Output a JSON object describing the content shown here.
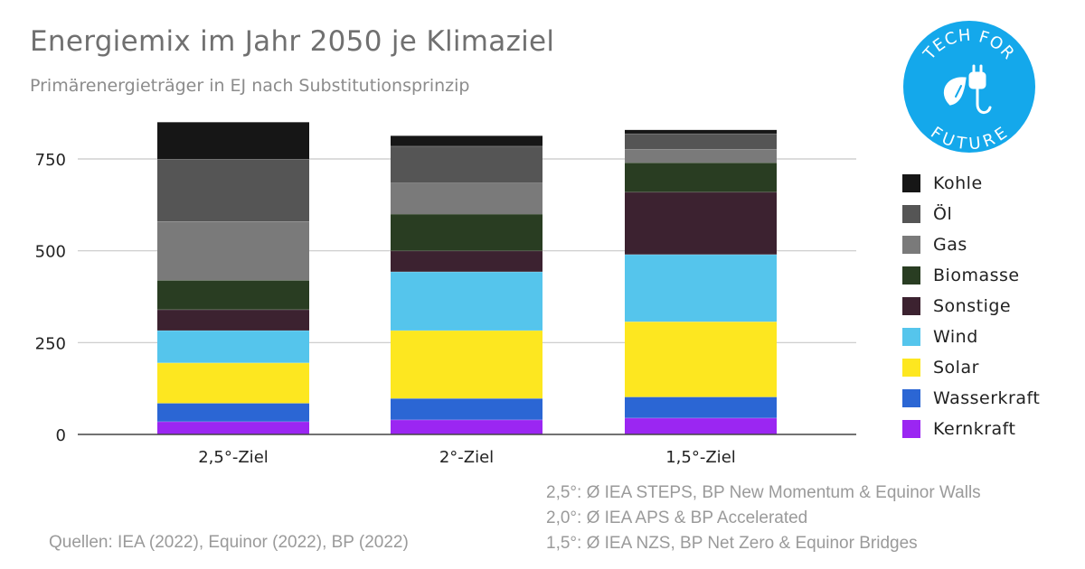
{
  "header": {
    "title": "Energiemix im Jahr 2050 je Klimaziel",
    "subtitle": "Primärenergieträger in EJ nach Substitutionsprinzip"
  },
  "logo": {
    "top_text": "TECH FOR",
    "bottom_text": "FUTURE",
    "icon": "leaf-plug-icon",
    "color": "#14a8eb"
  },
  "chart_data": {
    "type": "bar",
    "stacked": true,
    "categories": [
      "2,5°-Ziel",
      "2°-Ziel",
      "1,5°-Ziel"
    ],
    "ylim": [
      0,
      850
    ],
    "yticks": [
      0,
      250,
      500,
      750
    ],
    "grid": true,
    "legend_position": "right",
    "series": [
      {
        "name": "Kernkraft",
        "color": "#9b26f2",
        "values": [
          35,
          40,
          45
        ]
      },
      {
        "name": "Wasserkraft",
        "color": "#2b66d4",
        "values": [
          50,
          58,
          57
        ]
      },
      {
        "name": "Solar",
        "color": "#fde720",
        "values": [
          110,
          185,
          205
        ]
      },
      {
        "name": "Wind",
        "color": "#55c5ec",
        "values": [
          88,
          160,
          183
        ]
      },
      {
        "name": "Sonstige",
        "color": "#3c2230",
        "values": [
          57,
          57,
          170
        ]
      },
      {
        "name": "Biomasse",
        "color": "#293d22",
        "values": [
          80,
          100,
          80
        ]
      },
      {
        "name": "Gas",
        "color": "#7a7a7a",
        "values": [
          160,
          85,
          37
        ]
      },
      {
        "name": "Öl",
        "color": "#555555",
        "values": [
          170,
          100,
          42
        ]
      },
      {
        "name": "Kohle",
        "color": "#161616",
        "values": [
          100,
          28,
          10
        ]
      }
    ]
  },
  "footer": {
    "source": "Quellen: IEA (2022), Equinor (2022), BP (2022)",
    "notes": [
      "2,5°: Ø IEA STEPS, BP New Momentum & Equinor Walls",
      "2,0°: Ø IEA APS & BP Accelerated",
      "1,5°: Ø IEA NZS, BP Net Zero & Equinor Bridges"
    ]
  }
}
